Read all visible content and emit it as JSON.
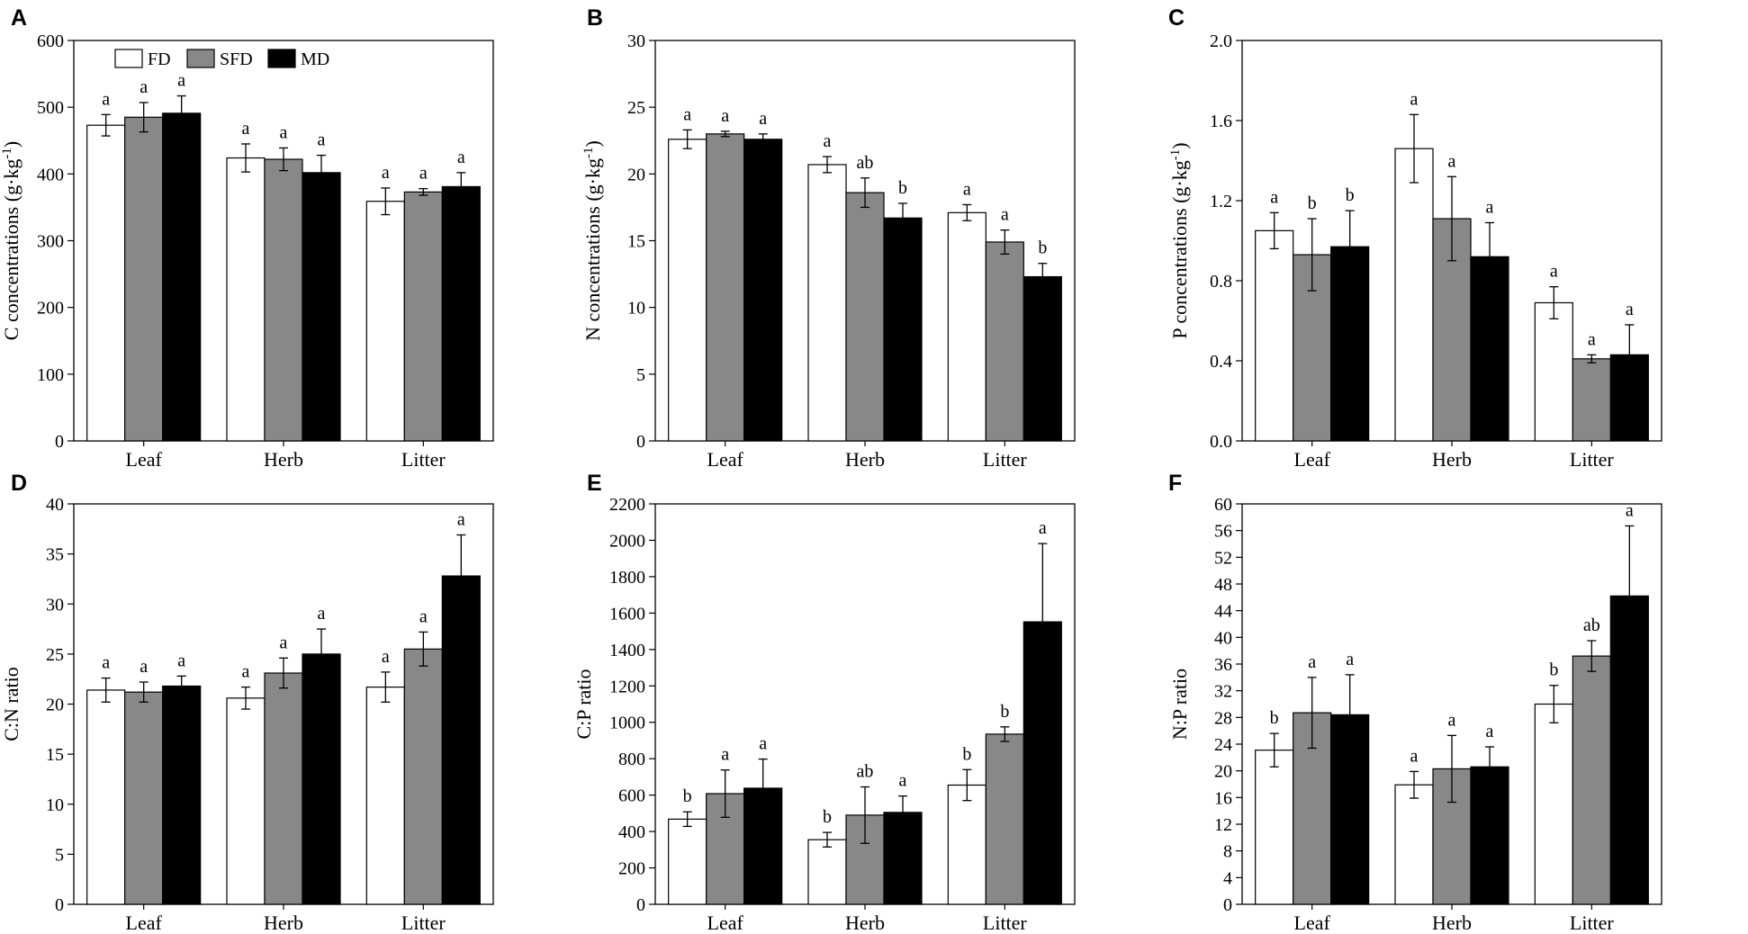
{
  "legend": [
    {
      "name": "FD",
      "color": "#ffffff"
    },
    {
      "name": "SFD",
      "color": "#888888"
    },
    {
      "name": "MD",
      "color": "#000000"
    }
  ],
  "chart_data": [
    {
      "panel": "A",
      "type": "bar",
      "ylabel": "C concentrations (g·kg",
      "ylabel_sup": "-1",
      "ylabel_tail": ")",
      "ylim": [
        0,
        600
      ],
      "yticks": [
        "0",
        "100",
        "200",
        "300",
        "400",
        "500",
        "600"
      ],
      "categories": [
        "Leaf",
        "Herb",
        "Litter"
      ],
      "series": [
        {
          "name": "FD",
          "values": [
            473,
            424,
            359
          ],
          "errors": [
            16,
            21,
            20
          ],
          "letters": [
            "a",
            "a",
            "a"
          ]
        },
        {
          "name": "SFD",
          "values": [
            485,
            422,
            373
          ],
          "errors": [
            22,
            17,
            5
          ],
          "letters": [
            "a",
            "a",
            "a"
          ]
        },
        {
          "name": "MD",
          "values": [
            491,
            402,
            381
          ],
          "errors": [
            26,
            26,
            21
          ],
          "letters": [
            "a",
            "a",
            "a"
          ]
        }
      ],
      "legend_shown": true
    },
    {
      "panel": "B",
      "type": "bar",
      "ylabel": "N concentrations (g·kg",
      "ylabel_sup": "-1",
      "ylabel_tail": ")",
      "ylim": [
        0,
        30
      ],
      "yticks": [
        "0",
        "5",
        "10",
        "15",
        "20",
        "25",
        "30"
      ],
      "categories": [
        "Leaf",
        "Herb",
        "Litter"
      ],
      "series": [
        {
          "name": "FD",
          "values": [
            22.6,
            20.7,
            17.1
          ],
          "errors": [
            0.7,
            0.6,
            0.6
          ],
          "letters": [
            "a",
            "a",
            "a"
          ]
        },
        {
          "name": "SFD",
          "values": [
            23.0,
            18.6,
            14.9
          ],
          "errors": [
            0.2,
            1.1,
            0.9
          ],
          "letters": [
            "a",
            "ab",
            "a"
          ]
        },
        {
          "name": "MD",
          "values": [
            22.6,
            16.7,
            12.3
          ],
          "errors": [
            0.4,
            1.1,
            1.0
          ],
          "letters": [
            "a",
            "b",
            "b"
          ]
        }
      ]
    },
    {
      "panel": "C",
      "type": "bar",
      "ylabel": "P concentrations (g·kg",
      "ylabel_sup": "-1",
      "ylabel_tail": ")",
      "ylim": [
        0,
        2.0
      ],
      "yticks": [
        "0.0",
        "0.4",
        "0.8",
        "1.2",
        "1.6",
        "2.0"
      ],
      "categories": [
        "Leaf",
        "Herb",
        "Litter"
      ],
      "series": [
        {
          "name": "FD",
          "values": [
            1.05,
            1.46,
            0.69
          ],
          "errors": [
            0.09,
            0.17,
            0.08
          ],
          "letters": [
            "a",
            "a",
            "a"
          ]
        },
        {
          "name": "SFD",
          "values": [
            0.93,
            1.11,
            0.41
          ],
          "errors": [
            0.18,
            0.21,
            0.02
          ],
          "letters": [
            "b",
            "a",
            "a"
          ]
        },
        {
          "name": "MD",
          "values": [
            0.97,
            0.92,
            0.43
          ],
          "errors": [
            0.18,
            0.17,
            0.15
          ],
          "letters": [
            "b",
            "a",
            "a"
          ]
        }
      ]
    },
    {
      "panel": "D",
      "type": "bar",
      "ylabel": "C:N ratio",
      "ylim": [
        0,
        40
      ],
      "yticks": [
        "0",
        "5",
        "10",
        "15",
        "20",
        "25",
        "30",
        "35",
        "40"
      ],
      "categories": [
        "Leaf",
        "Herb",
        "Litter"
      ],
      "series": [
        {
          "name": "FD",
          "values": [
            21.4,
            20.6,
            21.7
          ],
          "errors": [
            1.2,
            1.1,
            1.5
          ],
          "letters": [
            "a",
            "a",
            "a"
          ]
        },
        {
          "name": "SFD",
          "values": [
            21.2,
            23.1,
            25.5
          ],
          "errors": [
            1.0,
            1.5,
            1.7
          ],
          "letters": [
            "a",
            "a",
            "a"
          ]
        },
        {
          "name": "MD",
          "values": [
            21.8,
            25.0,
            32.8
          ],
          "errors": [
            1.0,
            2.5,
            4.1
          ],
          "letters": [
            "a",
            "a",
            "a"
          ]
        }
      ]
    },
    {
      "panel": "E",
      "type": "bar",
      "ylabel": "C:P ratio",
      "ylim": [
        0,
        2200
      ],
      "yticks": [
        "0",
        "200",
        "400",
        "600",
        "800",
        "1000",
        "1200",
        "1400",
        "1600",
        "1800",
        "2000",
        "2200"
      ],
      "categories": [
        "Leaf",
        "Herb",
        "Litter"
      ],
      "series": [
        {
          "name": "FD",
          "values": [
            468,
            355,
            655
          ],
          "errors": [
            40,
            40,
            85
          ],
          "letters": [
            "b",
            "b",
            "b"
          ]
        },
        {
          "name": "SFD",
          "values": [
            608,
            490,
            935
          ],
          "errors": [
            130,
            155,
            40
          ],
          "letters": [
            "a",
            "ab",
            "b"
          ]
        },
        {
          "name": "MD",
          "values": [
            638,
            505,
            1552
          ],
          "errors": [
            160,
            90,
            430
          ],
          "letters": [
            "a",
            "a",
            "a"
          ]
        }
      ]
    },
    {
      "panel": "F",
      "type": "bar",
      "ylabel": "N:P ratio",
      "ylim": [
        0,
        60
      ],
      "yticks": [
        "0",
        "4",
        "8",
        "12",
        "16",
        "20",
        "24",
        "28",
        "32",
        "36",
        "40",
        "44",
        "48",
        "52",
        "56",
        "60"
      ],
      "categories": [
        "Leaf",
        "Herb",
        "Litter"
      ],
      "series": [
        {
          "name": "FD",
          "values": [
            23.1,
            17.9,
            30.0
          ],
          "errors": [
            2.5,
            2.0,
            2.8
          ],
          "letters": [
            "b",
            "a",
            "b"
          ]
        },
        {
          "name": "SFD",
          "values": [
            28.7,
            20.3,
            37.2
          ],
          "errors": [
            5.3,
            5.0,
            2.3
          ],
          "letters": [
            "a",
            "a",
            "ab"
          ]
        },
        {
          "name": "MD",
          "values": [
            28.4,
            20.6,
            46.2
          ],
          "errors": [
            6.0,
            3.0,
            10.5
          ],
          "letters": [
            "a",
            "a",
            "a"
          ]
        }
      ]
    }
  ]
}
